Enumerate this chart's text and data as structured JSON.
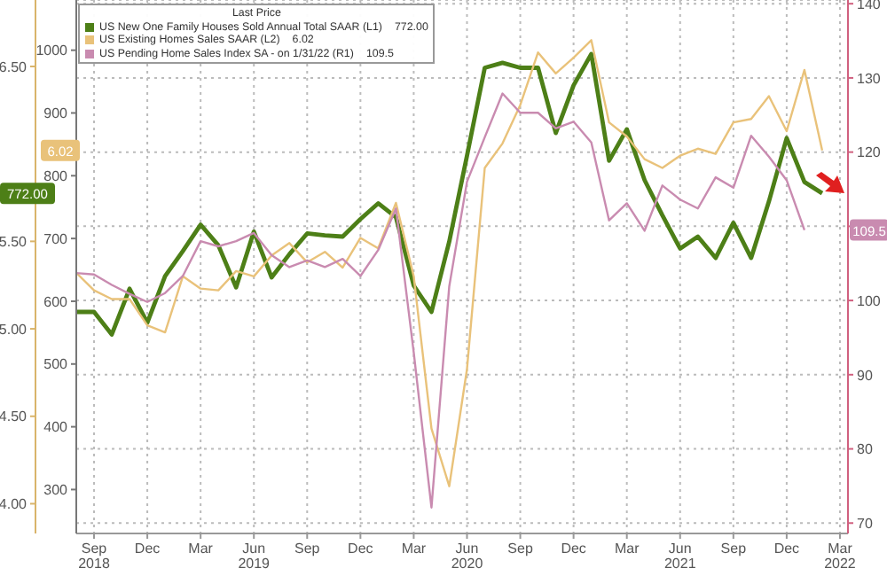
{
  "chart_data": {
    "type": "line",
    "legend_title": "Last Price",
    "legend": "top left",
    "grid": true,
    "x": [
      "2018-08",
      "2018-09",
      "2018-10",
      "2018-11",
      "2018-12",
      "2019-01",
      "2019-02",
      "2019-03",
      "2019-04",
      "2019-05",
      "2019-06",
      "2019-07",
      "2019-08",
      "2019-09",
      "2019-10",
      "2019-11",
      "2019-12",
      "2020-01",
      "2020-02",
      "2020-03",
      "2020-04",
      "2020-05",
      "2020-06",
      "2020-07",
      "2020-08",
      "2020-09",
      "2020-10",
      "2020-11",
      "2020-12",
      "2021-01",
      "2021-02",
      "2021-03",
      "2021-04",
      "2021-05",
      "2021-06",
      "2021-07",
      "2021-08",
      "2021-09",
      "2021-10",
      "2021-11",
      "2021-12",
      "2022-01",
      "2022-02"
    ],
    "xlim": [
      "2018-08",
      "2022-03-15"
    ],
    "xticks": [
      {
        "value": "2018-09",
        "label": "Sep\n2018"
      },
      {
        "value": "2018-12",
        "label": "Dec"
      },
      {
        "value": "2019-03",
        "label": "Mar"
      },
      {
        "value": "2019-06",
        "label": "Jun\n2019"
      },
      {
        "value": "2019-09",
        "label": "Sep"
      },
      {
        "value": "2019-12",
        "label": "Dec"
      },
      {
        "value": "2020-03",
        "label": "Mar"
      },
      {
        "value": "2020-06",
        "label": "Jun\n2020"
      },
      {
        "value": "2020-09",
        "label": "Sep"
      },
      {
        "value": "2020-12",
        "label": "Dec"
      },
      {
        "value": "2021-03",
        "label": "Mar"
      },
      {
        "value": "2021-06",
        "label": "Jun\n2021"
      },
      {
        "value": "2021-09",
        "label": "Sep"
      },
      {
        "value": "2021-12",
        "label": "Dec"
      },
      {
        "value": "2022-03",
        "label": "Mar\n2022"
      }
    ],
    "ylim": [
      230,
      1080
    ],
    "yticks": [
      300,
      400,
      500,
      600,
      700,
      800,
      900,
      1000
    ],
    "y2lim": [
      3.83,
      6.88
    ],
    "y2ticks": [
      {
        "value": 4,
        "label": "4.00"
      },
      {
        "value": 4.5,
        "label": "4.50"
      },
      {
        "value": 5,
        "label": "5.00"
      },
      {
        "value": 5.5,
        "label": "5.50"
      },
      {
        "value": 6.5,
        "label": "6.50"
      }
    ],
    "y3lim": [
      68.6,
      140.5
    ],
    "y3ticks": [
      70,
      80,
      90,
      100,
      {
        "value": 110,
        "label": null
      },
      120,
      130,
      140
    ],
    "annotations": [
      "772.00",
      "6.02",
      "109.5"
    ],
    "series": [
      {
        "name": "US New One Family Houses Sold Annual Total SAAR  (L1)",
        "color": "#4d7f17",
        "axis": "y",
        "values": [
          583,
          583,
          547,
          620,
          566,
          640,
          680,
          722,
          689,
          622,
          711,
          638,
          675,
          708,
          705,
          703,
          731,
          756,
          734,
          625,
          583,
          695,
          832,
          972,
          980,
          972,
          972,
          868,
          944,
          994,
          824,
          874,
          793,
          737,
          684,
          703,
          669,
          725,
          669,
          759,
          860,
          790,
          772
        ]
      },
      {
        "name": "US Existing Homes Sales SAAR  (L2)",
        "color": "#e9c27a",
        "axis": "y2",
        "values": [
          5.32,
          5.22,
          5.17,
          5.17,
          5.02,
          4.98,
          5.3,
          5.23,
          5.22,
          5.33,
          5.3,
          5.42,
          5.49,
          5.38,
          5.44,
          5.35,
          5.52,
          5.46,
          5.72,
          5.3,
          4.43,
          4.1,
          4.77,
          5.92,
          6.06,
          6.28,
          6.58,
          6.46,
          6.55,
          6.65,
          6.18,
          6.1,
          5.97,
          5.92,
          5.99,
          6.03,
          6.0,
          6.18,
          6.2,
          6.33,
          6.13,
          6.48,
          6.02
        ]
      },
      {
        "name": "US Pending Home Sales Index SA -  on 1/31/22  (R1)",
        "color": "#c98bb0",
        "axis": "y3",
        "values": [
          103.7,
          103.5,
          102.1,
          100.9,
          99.8,
          101.0,
          103.3,
          108.0,
          107.3,
          108.0,
          109.1,
          106.1,
          104.5,
          105.4,
          104.5,
          105.6,
          103.3,
          106.8,
          112.4,
          93,
          72.1,
          101.9,
          116,
          122,
          127.9,
          125.3,
          125.3,
          123.2,
          124.1,
          121.3,
          110.8,
          113.1,
          109.4,
          115.5,
          113.6,
          112.4,
          116.6,
          115.2,
          122.2,
          119.4,
          116.2,
          109.5,
          null
        ]
      }
    ]
  }
}
